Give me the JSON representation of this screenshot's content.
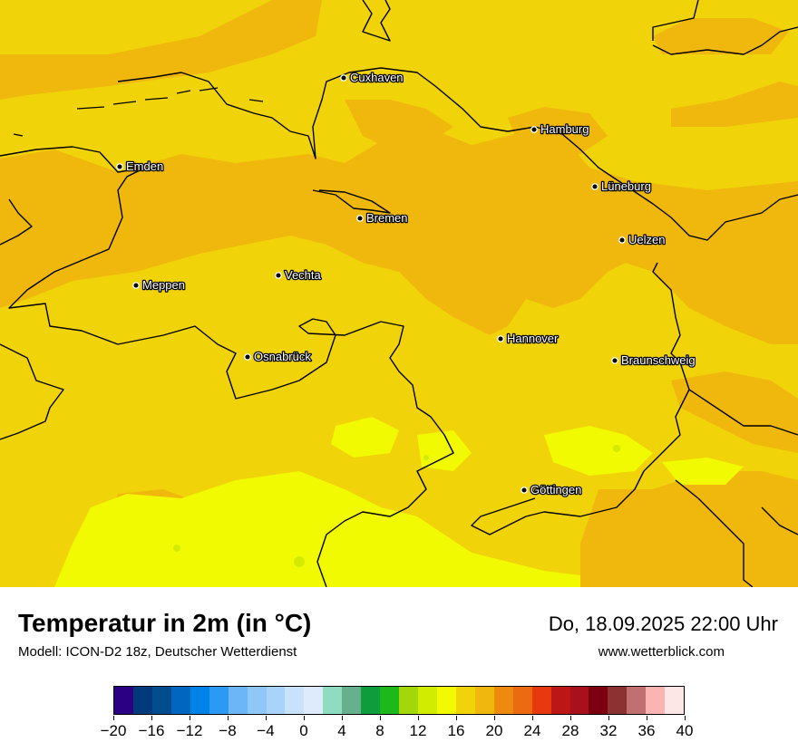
{
  "map": {
    "cities": [
      {
        "name": "Cuxhaven"
      },
      {
        "name": "Hamburg"
      },
      {
        "name": "Emden"
      },
      {
        "name": "Bremen"
      },
      {
        "name": "Lüneburg"
      },
      {
        "name": "Uelzen"
      },
      {
        "name": "Meppen"
      },
      {
        "name": "Vechta"
      },
      {
        "name": "Osnabrück"
      },
      {
        "name": "Hannover"
      },
      {
        "name": "Braunschweig"
      },
      {
        "name": "Göttingen"
      }
    ],
    "field_colors": {
      "band_18_20": "#f1d30a",
      "band_20_22": "#f0b80c",
      "band_16_18": "#f1fa00",
      "band_14_16": "#d4ea00"
    }
  },
  "header": {
    "title": "Temperatur in 2m (in °C)",
    "subtitle": "Modell: ICON-D2 18z, Deutscher Wetterdienst",
    "datetime": "Do, 18.09.2025 22:00 Uhr",
    "website": "www.wetterblick.com"
  },
  "legend": {
    "min": -20,
    "max": 40,
    "colors": [
      "#2c0082",
      "#003a7a",
      "#004c8c",
      "#0066c0",
      "#0082e6",
      "#2a9af5",
      "#6cb6f7",
      "#8fc7f8",
      "#a9d3fa",
      "#c8e2fc",
      "#ddebfd",
      "#90dcc0",
      "#66b08e",
      "#0f9c3c",
      "#1db81a",
      "#a2d80a",
      "#d2ec00",
      "#f1fa00",
      "#f1d30a",
      "#f0b80c",
      "#ee8a0e",
      "#ec6a10",
      "#e83810",
      "#bc1616",
      "#a8101c",
      "#7c0010",
      "#8c3232",
      "#c07070",
      "#fab4b4",
      "#fde6e6"
    ],
    "ticks": [
      "−20",
      "−16",
      "−12",
      "−8",
      "−4",
      "0",
      "4",
      "8",
      "12",
      "16",
      "20",
      "24",
      "28",
      "32",
      "36",
      "40"
    ]
  }
}
